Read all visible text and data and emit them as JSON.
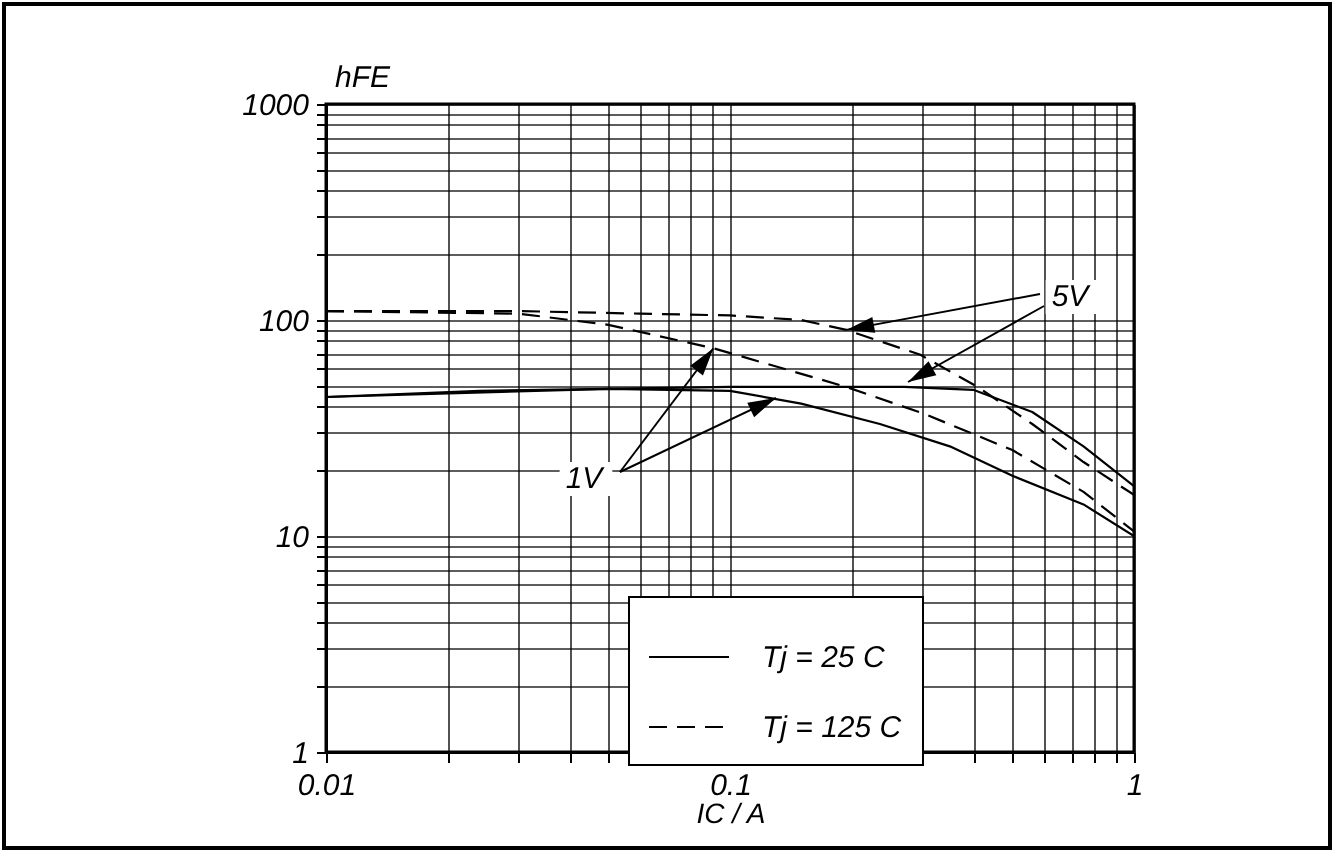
{
  "chart_data": {
    "type": "line",
    "xlabel": "IC / A",
    "ylabel": "hFE",
    "log": "xy",
    "grid": true,
    "legend": "bottom",
    "marker": "none",
    "xlim": [
      0.01,
      1
    ],
    "ylim": [
      1,
      1000
    ],
    "xticks": [
      0.01,
      {
        "value": 0.02,
        "label": null
      },
      {
        "value": 0.03,
        "label": null
      },
      {
        "value": 0.04,
        "label": null
      },
      {
        "value": 0.05,
        "label": null
      },
      {
        "value": 0.06,
        "label": null
      },
      {
        "value": 0.07,
        "label": null
      },
      {
        "value": 0.08,
        "label": null
      },
      {
        "value": 0.09,
        "label": null
      },
      0.1,
      {
        "value": 0.2,
        "label": null
      },
      {
        "value": 0.3,
        "label": null
      },
      {
        "value": 0.4,
        "label": null
      },
      {
        "value": 0.5,
        "label": null
      },
      {
        "value": 0.6,
        "label": null
      },
      {
        "value": 0.7,
        "label": null
      },
      {
        "value": 0.8,
        "label": null
      },
      {
        "value": 0.9,
        "label": null
      },
      1
    ],
    "yticks": [
      1,
      {
        "value": 2,
        "label": null
      },
      {
        "value": 3,
        "label": null
      },
      {
        "value": 4,
        "label": null
      },
      {
        "value": 5,
        "label": null
      },
      {
        "value": 6,
        "label": null
      },
      {
        "value": 7,
        "label": null
      },
      {
        "value": 8,
        "label": null
      },
      {
        "value": 9,
        "label": null
      },
      10,
      {
        "value": 20,
        "label": null
      },
      {
        "value": 30,
        "label": null
      },
      {
        "value": 40,
        "label": null
      },
      {
        "value": 50,
        "label": null
      },
      {
        "value": 60,
        "label": null
      },
      {
        "value": 70,
        "label": null
      },
      {
        "value": 80,
        "label": null
      },
      {
        "value": 90,
        "label": null
      },
      100,
      {
        "value": 200,
        "label": null
      },
      {
        "value": 300,
        "label": null
      },
      {
        "value": 400,
        "label": null
      },
      {
        "value": 500,
        "label": null
      },
      {
        "value": 600,
        "label": null
      },
      {
        "value": 700,
        "label": null
      },
      {
        "value": 800,
        "label": null
      },
      {
        "value": 900,
        "label": null
      },
      1000
    ],
    "series": [
      {
        "name": "Tj = 25 C",
        "color": "#000000",
        "line_style": "solid",
        "x": [
          0.01,
          0.024,
          0.05,
          0.1,
          0.27,
          0.4,
          0.56,
          0.75,
          1
        ],
        "values": [
          44,
          47,
          48,
          49,
          49,
          47.5,
          37.5,
          26,
          17
        ]
      },
      {
        "color": "#000000",
        "line_style": "solid",
        "x": [
          0.01,
          0.05,
          0.1,
          0.15,
          0.235,
          0.35,
          0.5,
          0.75,
          1
        ],
        "values": [
          44,
          48,
          47,
          41,
          33,
          26,
          19,
          14,
          10
        ]
      },
      {
        "name": "Tj = 125 C",
        "color": "#000000",
        "line_style": "dashed",
        "x": [
          0.01,
          0.03,
          0.06,
          0.1,
          0.15,
          0.194,
          0.296,
          0.41,
          0.56,
          0.75,
          1
        ],
        "values": [
          110,
          110,
          107,
          105,
          100,
          90,
          69,
          49,
          33,
          22,
          15.5
        ]
      },
      {
        "color": "#000000",
        "line_style": "dashed",
        "x": [
          0.01,
          0.03,
          0.05,
          0.091,
          0.194,
          0.3,
          0.5,
          0.75,
          1
        ],
        "values": [
          110,
          107,
          95,
          74,
          49,
          37,
          25,
          16,
          10.5
        ]
      }
    ],
    "annotations": [
      {
        "text": "1V",
        "x": 0.091,
        "y": 74
      },
      {
        "text": "5V",
        "x": 0.194,
        "y": 90
      }
    ]
  }
}
